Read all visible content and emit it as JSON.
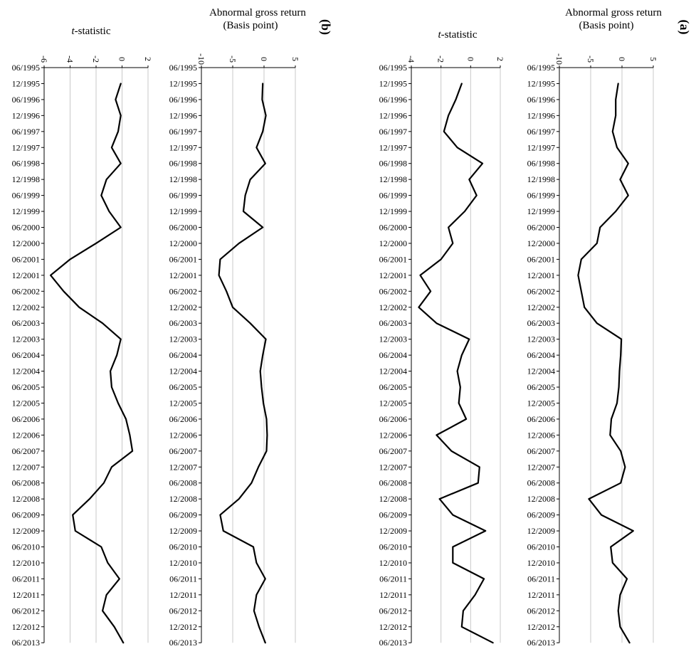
{
  "figure": {
    "panel_b_label": "(b)",
    "panel_a_label": "(a)",
    "t_title_prefix": "t",
    "t_title_suffix": "-statistic",
    "ret_title_line1": "Abnormal gross return",
    "ret_title_line2": "(Basis point)"
  },
  "chart_data": [
    {
      "id": "b-tstat",
      "panel": "(b)",
      "type": "line",
      "title": "t-statistic",
      "xlim": [
        -6,
        2
      ],
      "xticks": [
        -6,
        -4,
        -2,
        0,
        2
      ],
      "grid": true,
      "dates": [
        "06/1995",
        "12/1995",
        "06/1996",
        "12/1996",
        "06/1997",
        "12/1997",
        "06/1998",
        "12/1998",
        "06/1999",
        "12/1999",
        "06/2000",
        "12/2000",
        "06/2001",
        "12/2001",
        "06/2002",
        "12/2002",
        "06/2003",
        "12/2003",
        "06/2004",
        "12/2004",
        "06/2005",
        "12/2005",
        "06/2006",
        "12/2006",
        "06/2007",
        "12/2007",
        "06/2008",
        "12/2008",
        "06/2009",
        "12/2009",
        "06/2010",
        "12/2010",
        "06/2011",
        "12/2011",
        "06/2012",
        "12/2012",
        "06/2013"
      ],
      "series": [
        {
          "values": [
            null,
            -0.1,
            -0.5,
            -0.1,
            -0.3,
            -0.8,
            -0.1,
            -1.2,
            -1.6,
            -1.0,
            -0.1,
            -2.0,
            -4.0,
            -5.5,
            -4.5,
            -3.3,
            -1.5,
            -0.1,
            -0.4,
            -0.9,
            -0.8,
            -0.3,
            0.3,
            0.6,
            0.8,
            -0.8,
            -1.4,
            -2.5,
            -3.8,
            -3.6,
            -1.6,
            -1.1,
            -0.2,
            -1.2,
            -1.5,
            -0.6,
            0.1
          ]
        }
      ]
    },
    {
      "id": "b-return",
      "panel": "(b)",
      "type": "line",
      "title": "Abnormal gross return (Basis point)",
      "xlim": [
        -10,
        5
      ],
      "xticks": [
        -10,
        -5,
        0,
        5
      ],
      "grid": true,
      "dates": [
        "06/1995",
        "12/1995",
        "06/1996",
        "12/1996",
        "06/1997",
        "12/1997",
        "06/1998",
        "12/1998",
        "06/1999",
        "12/1999",
        "06/2000",
        "12/2000",
        "06/2001",
        "12/2001",
        "06/2002",
        "12/2002",
        "06/2003",
        "12/2003",
        "06/2004",
        "12/2004",
        "06/2005",
        "12/2005",
        "06/2006",
        "12/2006",
        "06/2007",
        "12/2007",
        "06/2008",
        "12/2008",
        "06/2009",
        "12/2009",
        "06/2010",
        "12/2010",
        "06/2011",
        "12/2011",
        "06/2012",
        "12/2012",
        "06/2013"
      ],
      "series": [
        {
          "values": [
            null,
            -0.2,
            -0.3,
            0.3,
            -0.2,
            -1.2,
            0.2,
            -2.2,
            -3.0,
            -3.3,
            -0.2,
            -4.0,
            -7.0,
            -7.2,
            -6.0,
            -5.0,
            -2.2,
            0.3,
            -0.2,
            -0.6,
            -0.4,
            -0.1,
            0.4,
            0.5,
            0.4,
            -0.9,
            -2.0,
            -4.0,
            -7.0,
            -6.5,
            -1.7,
            -1.2,
            0.2,
            -1.2,
            -1.6,
            -0.8,
            0.2
          ]
        }
      ]
    },
    {
      "id": "a-tstat",
      "panel": "(a)",
      "type": "line",
      "title": "t-statistic",
      "xlim": [
        -4,
        2
      ],
      "xticks": [
        -4,
        -2,
        0,
        2
      ],
      "grid": true,
      "dates": [
        "06/1995",
        "12/1995",
        "06/1996",
        "12/1996",
        "06/1997",
        "12/1997",
        "06/1998",
        "12/1998",
        "06/1999",
        "12/1999",
        "06/2000",
        "12/2000",
        "06/2001",
        "12/2001",
        "06/2002",
        "12/2002",
        "06/2003",
        "12/2003",
        "06/2004",
        "12/2004",
        "06/2005",
        "12/2005",
        "06/2006",
        "12/2006",
        "06/2007",
        "12/2007",
        "06/2008",
        "12/2008",
        "06/2009",
        "12/2009",
        "06/2010",
        "12/2010",
        "06/2011",
        "12/2011",
        "06/2012",
        "12/2012",
        "06/2013"
      ],
      "series": [
        {
          "values": [
            null,
            -0.6,
            -1.0,
            -1.5,
            -1.8,
            -0.9,
            0.8,
            -0.1,
            0.4,
            -0.4,
            -1.5,
            -1.2,
            -2.0,
            -3.4,
            -2.7,
            -3.5,
            -2.3,
            -0.1,
            -0.6,
            -0.9,
            -0.7,
            -0.8,
            -0.3,
            -2.3,
            -1.3,
            0.6,
            0.5,
            -2.1,
            -1.2,
            1.0,
            -1.2,
            -1.2,
            0.9,
            0.3,
            -0.5,
            -0.6,
            1.5
          ]
        }
      ]
    },
    {
      "id": "a-return",
      "panel": "(a)",
      "type": "line",
      "title": "Abnormal gross return (Basis point)",
      "xlim": [
        -10,
        5
      ],
      "xticks": [
        -10,
        -5,
        0,
        5
      ],
      "grid": true,
      "dates": [
        "06/1995",
        "12/1995",
        "06/1996",
        "12/1996",
        "06/1997",
        "12/1997",
        "06/1998",
        "12/1998",
        "06/1999",
        "12/1999",
        "06/2000",
        "12/2000",
        "06/2001",
        "12/2001",
        "06/2002",
        "12/2002",
        "06/2003",
        "12/2003",
        "06/2004",
        "12/2004",
        "06/2005",
        "12/2005",
        "06/2006",
        "12/2006",
        "06/2007",
        "12/2007",
        "06/2008",
        "12/2008",
        "06/2009",
        "12/2009",
        "06/2010",
        "12/2010",
        "06/2011",
        "12/2011",
        "06/2012",
        "12/2012",
        "06/2013"
      ],
      "series": [
        {
          "values": [
            null,
            -0.6,
            -1.0,
            -1.0,
            -1.5,
            -0.8,
            1.0,
            -0.3,
            1.0,
            -1.0,
            -3.5,
            -4.0,
            -6.5,
            -7.0,
            -6.5,
            -6.0,
            -4.0,
            -0.1,
            -0.2,
            -0.4,
            -0.5,
            -0.8,
            -1.7,
            -1.9,
            -0.2,
            0.5,
            -0.2,
            -5.3,
            -3.3,
            1.8,
            -1.8,
            -1.5,
            0.8,
            -0.3,
            -0.6,
            -0.3,
            1.2
          ]
        }
      ]
    }
  ]
}
